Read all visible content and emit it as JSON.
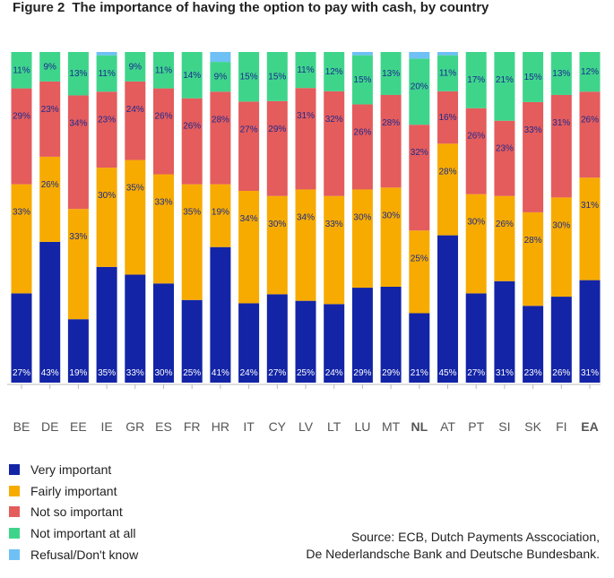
{
  "title": {
    "number": "Figure 2",
    "text": "The importance of having the option to pay with cash, by country"
  },
  "colors": {
    "very": "#1324a6",
    "fairly": "#f7ab00",
    "notso": "#e45c5c",
    "notatall": "#3ed58b",
    "refusal": "#6fc0f5",
    "label_dark": "#ffffff",
    "label_light": "#1b2a8f"
  },
  "chart_data": {
    "type": "bar",
    "stacked": true,
    "ylim": [
      0,
      100
    ],
    "bold_categories": [
      "NL",
      "EA"
    ],
    "categories": [
      "BE",
      "DE",
      "EE",
      "IE",
      "GR",
      "ES",
      "FR",
      "HR",
      "IT",
      "CY",
      "LV",
      "LT",
      "LU",
      "MT",
      "NL",
      "AT",
      "PT",
      "SI",
      "SK",
      "FI",
      "EA"
    ],
    "series": [
      {
        "key": "very",
        "name": "Very important",
        "values": [
          27,
          43,
          19,
          35,
          33,
          30,
          25,
          41,
          24,
          27,
          25,
          24,
          29,
          29,
          21,
          45,
          27,
          31,
          23,
          26,
          31
        ],
        "labels": [
          "27%",
          "43%",
          "19%",
          "35%",
          "33%",
          "30%",
          "25%",
          "41%",
          "24%",
          "27%",
          "25%",
          "24%",
          "29%",
          "29%",
          "21%",
          "45%",
          "27%",
          "31%",
          "23%",
          "26%",
          "31%"
        ]
      },
      {
        "key": "fairly",
        "name": "Fairly important",
        "values": [
          33,
          26,
          33,
          30,
          35,
          33,
          35,
          19,
          34,
          30,
          34,
          33,
          30,
          30,
          25,
          28,
          30,
          26,
          28,
          30,
          31
        ],
        "labels": [
          "33%",
          "26%",
          "33%",
          "30%",
          "35%",
          "33%",
          "35%",
          "19%",
          "34%",
          "30%",
          "34%",
          "33%",
          "30%",
          "30%",
          "25%",
          "28%",
          "30%",
          "26%",
          "28%",
          "30%",
          "31%"
        ]
      },
      {
        "key": "notso",
        "name": "Not so important",
        "values": [
          29,
          23,
          34,
          23,
          24,
          26,
          26,
          28,
          27,
          29,
          31,
          32,
          26,
          28,
          32,
          16,
          26,
          23,
          33,
          31,
          26
        ],
        "labels": [
          "29%",
          "23%",
          "34%",
          "23%",
          "24%",
          "26%",
          "26%",
          "28%",
          "27%",
          "29%",
          "31%",
          "32%",
          "26%",
          "28%",
          "32%",
          "16%",
          "26%",
          "23%",
          "33%",
          "31%",
          "26%"
        ]
      },
      {
        "key": "notatall",
        "name": "Not important at all",
        "values": [
          11,
          9,
          13,
          11,
          9,
          11,
          14,
          9,
          15,
          15,
          11,
          12,
          15,
          13,
          20,
          11,
          17,
          21,
          15,
          13,
          12
        ],
        "labels": [
          "11%",
          "9%",
          "13%",
          "11%",
          "9%",
          "11%",
          "14%",
          "9%",
          "15%",
          "15%",
          "11%",
          "12%",
          "15%",
          "13%",
          "20%",
          "11%",
          "17%",
          "21%",
          "15%",
          "13%",
          "12%"
        ]
      },
      {
        "key": "refusal",
        "name": "Refusal/Don't know",
        "values": [
          0,
          0,
          0,
          1,
          0,
          0,
          0,
          3,
          0,
          0,
          0,
          0,
          1,
          0,
          2,
          1,
          0,
          0,
          0,
          0,
          0
        ],
        "labels": [
          "",
          "",
          "",
          "",
          "",
          "",
          "",
          "",
          "",
          "",
          "",
          "",
          "",
          "",
          "",
          "",
          "",
          "",
          "",
          "",
          ""
        ]
      }
    ]
  },
  "source": {
    "line1": "Source: ECB, Dutch Payments Asscociation,",
    "line2": "De Nederlandsche Bank and Deutsche Bundesbank."
  }
}
